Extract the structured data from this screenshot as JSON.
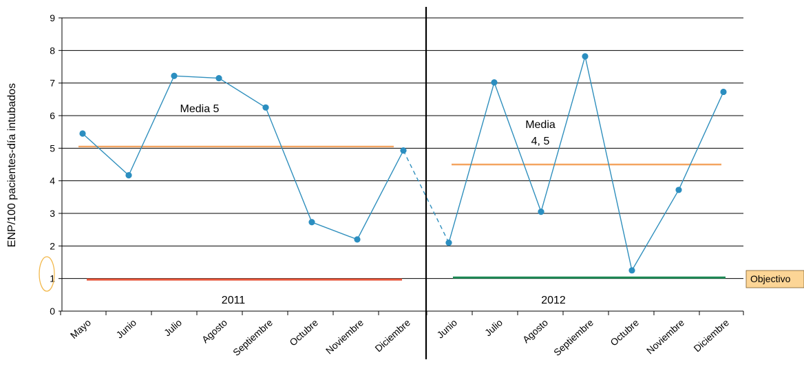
{
  "chart_data": {
    "type": "line",
    "ylabel": "ENP/100 pacientes-día intubados",
    "ylim": [
      0,
      9
    ],
    "yticks": [
      "0",
      "1",
      "2",
      "3",
      "4",
      "5",
      "6",
      "7",
      "8",
      "9"
    ],
    "grid": true,
    "categories": [
      "Mayo",
      "Junio",
      "Julio",
      "Agosto",
      "Septiembre",
      "Octubre",
      "Noviembre",
      "Diciembre",
      "Junio",
      "Julio",
      "Agosto",
      "Septiembre",
      "Octubre",
      "Noviembre",
      "Diciembre"
    ],
    "series": [
      {
        "values": [
          5.45,
          4.17,
          7.22,
          7.15,
          6.25,
          2.73,
          2.2,
          4.93,
          2.1,
          7.02,
          3.05,
          7.82,
          1.25,
          3.72,
          6.73
        ]
      }
    ],
    "gap_between_index": [
      7,
      8
    ],
    "year_labels": [
      "2011",
      "2012"
    ],
    "mean_labels": [
      "Media 5",
      "Media",
      "4, 5"
    ],
    "reference_lines": [
      {
        "segment": "2011",
        "value": 5.05,
        "color": "#f4a460"
      },
      {
        "segment": "2012",
        "value": 4.5,
        "color": "#f4a460"
      },
      {
        "segment": "2011",
        "value": 0.97,
        "color": "#e8553a"
      },
      {
        "segment": "2012",
        "value": 1.03,
        "color": "#1e8a56"
      }
    ],
    "objective_label": "Objectivo",
    "colors": {
      "line": "#2f8fbd",
      "marker": "#2b8ec0",
      "objective_box_fill": "#fcd596",
      "objective_circle": "#f2b84b",
      "divider": "#000000"
    }
  }
}
